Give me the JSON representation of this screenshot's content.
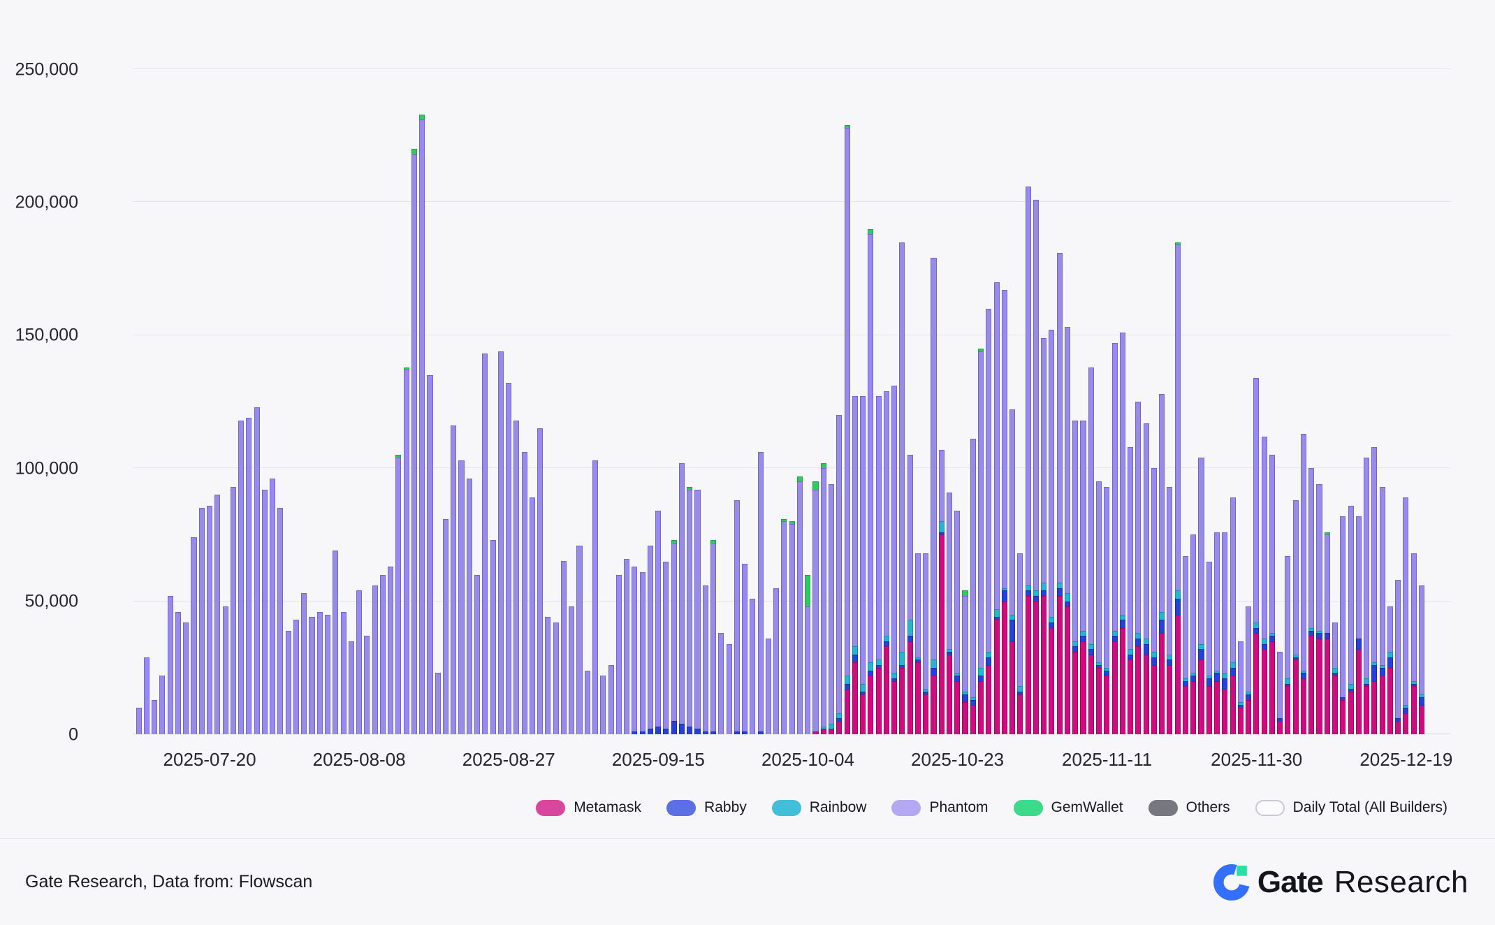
{
  "chart_data": {
    "type": "bar",
    "stacked": true,
    "title": "",
    "xlabel": "",
    "ylabel": "",
    "grid": "horizontal",
    "legend_position": "bottom-right",
    "values_in": "thousands",
    "ylim": [
      0,
      250000
    ],
    "y_ticks": [
      "0",
      "50,000",
      "100,000",
      "150,000",
      "200,000",
      "250,000"
    ],
    "x": [
      "2025-07-11",
      "2025-07-12",
      "2025-07-13",
      "2025-07-14",
      "2025-07-15",
      "2025-07-16",
      "2025-07-17",
      "2025-07-18",
      "2025-07-19",
      "2025-07-20",
      "2025-07-21",
      "2025-07-22",
      "2025-07-23",
      "2025-07-24",
      "2025-07-25",
      "2025-07-26",
      "2025-07-27",
      "2025-07-28",
      "2025-07-29",
      "2025-07-30",
      "2025-07-31",
      "2025-08-01",
      "2025-08-02",
      "2025-08-03",
      "2025-08-04",
      "2025-08-05",
      "2025-08-06",
      "2025-08-07",
      "2025-08-08",
      "2025-08-09",
      "2025-08-10",
      "2025-08-11",
      "2025-08-12",
      "2025-08-13",
      "2025-08-14",
      "2025-08-15",
      "2025-08-16",
      "2025-08-17",
      "2025-08-18",
      "2025-08-19",
      "2025-08-20",
      "2025-08-21",
      "2025-08-22",
      "2025-08-23",
      "2025-08-24",
      "2025-08-25",
      "2025-08-26",
      "2025-08-27",
      "2025-08-28",
      "2025-08-29",
      "2025-08-30",
      "2025-08-31",
      "2025-09-01",
      "2025-09-02",
      "2025-09-03",
      "2025-09-04",
      "2025-09-05",
      "2025-09-06",
      "2025-09-07",
      "2025-09-08",
      "2025-09-09",
      "2025-09-10",
      "2025-09-11",
      "2025-09-12",
      "2025-09-13",
      "2025-09-14",
      "2025-09-15",
      "2025-09-16",
      "2025-09-17",
      "2025-09-18",
      "2025-09-19",
      "2025-09-20",
      "2025-09-21",
      "2025-09-22",
      "2025-09-23",
      "2025-09-24",
      "2025-09-25",
      "2025-09-26",
      "2025-09-27",
      "2025-09-28",
      "2025-09-29",
      "2025-09-30",
      "2025-10-01",
      "2025-10-02",
      "2025-10-03",
      "2025-10-04",
      "2025-10-05",
      "2025-10-06",
      "2025-10-07",
      "2025-10-08",
      "2025-10-09",
      "2025-10-10",
      "2025-10-11",
      "2025-10-12",
      "2025-10-13",
      "2025-10-14",
      "2025-10-15",
      "2025-10-16",
      "2025-10-17",
      "2025-10-18",
      "2025-10-19",
      "2025-10-20",
      "2025-10-21",
      "2025-10-22",
      "2025-10-23",
      "2025-10-24",
      "2025-10-25",
      "2025-10-26",
      "2025-10-27",
      "2025-10-28",
      "2025-10-29",
      "2025-10-30",
      "2025-10-31",
      "2025-11-01",
      "2025-11-02",
      "2025-11-03",
      "2025-11-04",
      "2025-11-05",
      "2025-11-06",
      "2025-11-07",
      "2025-11-08",
      "2025-11-09",
      "2025-11-10",
      "2025-11-11",
      "2025-11-12",
      "2025-11-13",
      "2025-11-14",
      "2025-11-15",
      "2025-11-16",
      "2025-11-17",
      "2025-11-18",
      "2025-11-19",
      "2025-11-20",
      "2025-11-21",
      "2025-11-22",
      "2025-11-23",
      "2025-11-24",
      "2025-11-25",
      "2025-11-26",
      "2025-11-27",
      "2025-11-28",
      "2025-11-29",
      "2025-11-30",
      "2025-12-01",
      "2025-12-02",
      "2025-12-03",
      "2025-12-04",
      "2025-12-05",
      "2025-12-06",
      "2025-12-07",
      "2025-12-08",
      "2025-12-09",
      "2025-12-10",
      "2025-12-11",
      "2025-12-12",
      "2025-12-13",
      "2025-12-14",
      "2025-12-15",
      "2025-12-16",
      "2025-12-17",
      "2025-12-18",
      "2025-12-19",
      "2025-12-20",
      "2025-12-21"
    ],
    "x_tick_labels": [
      {
        "i": 9,
        "label": "2025-07-20"
      },
      {
        "i": 28,
        "label": "2025-08-08"
      },
      {
        "i": 47,
        "label": "2025-08-27"
      },
      {
        "i": 66,
        "label": "2025-09-15"
      },
      {
        "i": 85,
        "label": "2025-10-04"
      },
      {
        "i": 104,
        "label": "2025-10-23"
      },
      {
        "i": 123,
        "label": "2025-11-11"
      },
      {
        "i": 142,
        "label": "2025-11-30"
      },
      {
        "i": 161,
        "label": "2025-12-19"
      }
    ],
    "daily_totals": [
      10,
      29,
      13,
      22,
      52,
      46,
      42,
      74,
      85,
      86,
      90,
      48,
      93,
      118,
      119,
      123,
      92,
      96,
      85,
      39,
      43,
      53,
      44,
      46,
      45,
      69,
      46,
      35,
      54,
      37,
      56,
      60,
      63,
      105,
      138,
      220,
      233,
      135,
      23,
      81,
      116,
      103,
      96,
      60,
      143,
      73,
      144,
      132,
      118,
      106,
      89,
      115,
      44,
      42,
      65,
      48,
      71,
      24,
      103,
      22,
      26,
      60,
      66,
      63,
      61,
      71,
      84,
      65,
      73,
      102,
      93,
      92,
      56,
      73,
      38,
      34,
      88,
      64,
      51,
      106,
      36,
      55,
      81,
      80,
      97,
      60,
      95,
      102,
      94,
      120,
      229,
      127,
      127,
      190,
      127,
      129,
      131,
      185,
      105,
      68,
      68,
      179,
      107,
      91,
      84,
      54,
      111,
      145,
      160,
      170,
      167,
      122,
      68,
      206,
      201,
      149,
      152,
      181,
      153,
      118,
      118,
      138,
      95,
      93,
      147,
      151,
      108,
      125,
      117,
      100,
      128,
      93,
      185,
      67,
      75,
      104,
      65,
      76,
      76,
      89,
      35,
      48,
      134,
      112,
      105,
      31,
      67,
      88,
      113,
      100,
      94,
      76,
      42,
      82,
      86,
      82,
      104,
      108,
      93,
      48,
      58,
      89,
      68,
      56
    ],
    "series": [
      {
        "name": "Metamask",
        "color": "#d00b80",
        "border": "#9c0a60",
        "legend_color": "#d9469e",
        "values": [
          0,
          0,
          0,
          0,
          0,
          0,
          0,
          0,
          0,
          0,
          0,
          0,
          0,
          0,
          0,
          0,
          0,
          0,
          0,
          0,
          0,
          0,
          0,
          0,
          0,
          0,
          0,
          0,
          0,
          0,
          0,
          0,
          0,
          0,
          0,
          0,
          0,
          0,
          0,
          0,
          0,
          0,
          0,
          0,
          0,
          0,
          0,
          0,
          0,
          0,
          0,
          0,
          0,
          0,
          0,
          0,
          0,
          0,
          0,
          0,
          0,
          0,
          0,
          0,
          0,
          0,
          0,
          0,
          0,
          0,
          0,
          0,
          0,
          0,
          0,
          0,
          0,
          0,
          0,
          0,
          0,
          0,
          0,
          0,
          0,
          0,
          1,
          2,
          2,
          5,
          17,
          27,
          15,
          22,
          25,
          33,
          20,
          25,
          35,
          27,
          15,
          22,
          75,
          30,
          20,
          12,
          11,
          20,
          26,
          43,
          50,
          35,
          15,
          52,
          50,
          52,
          40,
          52,
          48,
          31,
          35,
          30,
          25,
          22,
          35,
          40,
          28,
          33,
          30,
          26,
          38,
          26,
          45,
          18,
          20,
          28,
          18,
          20,
          17,
          22,
          10,
          13,
          38,
          32,
          35,
          5,
          18,
          28,
          21,
          37,
          36,
          36,
          22,
          13,
          16,
          32,
          18,
          20,
          22,
          25,
          5,
          8,
          18,
          11
        ]
      },
      {
        "name": "Rabby",
        "color": "#2440dd",
        "border": "#1b2fa8",
        "legend_color": "#5c6fe4",
        "values": [
          0,
          0,
          0,
          0,
          0,
          0,
          0,
          0,
          0,
          0,
          0,
          0,
          0,
          0,
          0,
          0,
          0,
          0,
          0,
          0,
          0,
          0,
          0,
          0,
          0,
          0,
          0,
          0,
          0,
          0,
          0,
          0,
          0,
          0,
          0,
          0,
          0,
          0,
          0,
          0,
          0,
          0,
          0,
          0,
          0,
          0,
          0,
          0,
          0,
          0,
          0,
          0,
          0,
          0,
          0,
          0,
          0,
          0,
          0,
          0,
          0,
          0,
          0,
          1,
          1,
          2,
          3,
          2,
          5,
          4,
          3,
          2,
          1,
          1,
          0,
          0,
          1,
          1,
          0,
          1,
          0,
          0,
          0,
          0,
          0,
          0,
          0,
          0,
          0,
          1,
          2,
          3,
          1,
          2,
          1,
          2,
          1,
          1,
          2,
          1,
          1,
          3,
          1,
          1,
          2,
          3,
          2,
          2,
          3,
          1,
          4,
          8,
          1,
          2,
          2,
          2,
          2,
          3,
          2,
          2,
          2,
          2,
          1,
          2,
          2,
          3,
          2,
          3,
          4,
          3,
          5,
          2,
          6,
          2,
          2,
          4,
          3,
          3,
          4,
          3,
          1,
          2,
          2,
          2,
          2,
          1,
          1,
          1,
          2,
          2,
          2,
          2,
          1,
          1,
          1,
          4,
          1,
          6,
          3,
          4,
          1,
          2,
          1,
          3
        ]
      },
      {
        "name": "Rainbow",
        "color": "#25b4d3",
        "border": "#1b8ea7",
        "legend_color": "#41bfd8",
        "values": [
          0,
          0,
          0,
          0,
          0,
          0,
          0,
          0,
          0,
          0,
          0,
          0,
          0,
          0,
          0,
          0,
          0,
          0,
          0,
          0,
          0,
          0,
          0,
          0,
          0,
          0,
          0,
          0,
          0,
          0,
          0,
          0,
          0,
          0,
          0,
          0,
          0,
          0,
          0,
          0,
          0,
          0,
          0,
          0,
          0,
          0,
          0,
          0,
          0,
          0,
          0,
          0,
          0,
          0,
          0,
          0,
          0,
          0,
          0,
          0,
          0,
          0,
          0,
          0,
          0,
          0,
          0,
          0,
          0,
          0,
          0,
          0,
          0,
          0,
          0,
          0,
          0,
          0,
          0,
          0,
          0,
          0,
          0,
          0,
          0,
          0,
          0,
          1,
          2,
          2,
          3,
          3,
          3,
          3,
          2,
          2,
          2,
          5,
          6,
          1,
          1,
          3,
          4,
          1,
          1,
          1,
          1,
          3,
          2,
          3,
          1,
          2,
          2,
          2,
          2,
          3,
          2,
          2,
          3,
          2,
          2,
          2,
          1,
          1,
          2,
          2,
          2,
          2,
          2,
          2,
          3,
          2,
          3,
          1,
          1,
          2,
          1,
          1,
          2,
          2,
          1,
          1,
          2,
          2,
          1,
          0,
          2,
          1,
          1,
          1,
          1,
          0,
          2,
          0,
          2,
          0,
          2,
          1,
          1,
          2,
          0,
          1,
          1,
          1
        ]
      },
      {
        "name": "Phantom",
        "color": "#978bea",
        "border": "#7465d2",
        "legend_color": "#b4a8f2",
        "values_mode": "remainder_of_daily_total"
      },
      {
        "name": "GemWallet",
        "color": "#2dcb61",
        "border": "#23a04c",
        "legend_color": "#3eda8c",
        "values": [
          0,
          0,
          0,
          0,
          0,
          0,
          0,
          0,
          0,
          0,
          0,
          0,
          0,
          0,
          0,
          0,
          0,
          0,
          0,
          0,
          0,
          0,
          0,
          0,
          0,
          0,
          0,
          0,
          0,
          0,
          0,
          0,
          0,
          1,
          1,
          2,
          2,
          0,
          0,
          0,
          0,
          0,
          0,
          0,
          0,
          0,
          0,
          0,
          0,
          0,
          0,
          0,
          0,
          0,
          0,
          0,
          0,
          0,
          0,
          0,
          0,
          0,
          0,
          0,
          0,
          0,
          0,
          0,
          1,
          0,
          1,
          0,
          0,
          1,
          0,
          0,
          0,
          0,
          0,
          0,
          0,
          0,
          1,
          1,
          2,
          12,
          3,
          2,
          0,
          0,
          1,
          0,
          0,
          2,
          0,
          0,
          0,
          0,
          0,
          0,
          0,
          0,
          0,
          0,
          0,
          2,
          0,
          1,
          0,
          0,
          0,
          0,
          0,
          0,
          0,
          0,
          0,
          0,
          0,
          0,
          0,
          0,
          0,
          0,
          0,
          0,
          0,
          0,
          0,
          0,
          0,
          0,
          1,
          0,
          0,
          0,
          0,
          0,
          0,
          0,
          0,
          0,
          0,
          0,
          0,
          0,
          0,
          0,
          0,
          0,
          0,
          1,
          0,
          0,
          0,
          0,
          0,
          0,
          0,
          0,
          0,
          0,
          0,
          0
        ]
      },
      {
        "name": "Others",
        "color": "#6f6f78",
        "border": "#57575e",
        "legend_color": "#77777f",
        "values": [
          0,
          0,
          0,
          0,
          0,
          0,
          0,
          0,
          0,
          0,
          0,
          0,
          0,
          0,
          0,
          0,
          0,
          0,
          0,
          0,
          0,
          0,
          0,
          0,
          0,
          0,
          0,
          0,
          0,
          0,
          0,
          0,
          0,
          0,
          0,
          0,
          0,
          0,
          0,
          0,
          0,
          0,
          0,
          0,
          0,
          0,
          0,
          0,
          0,
          0,
          0,
          0,
          0,
          0,
          0,
          0,
          0,
          0,
          0,
          0,
          0,
          0,
          0,
          0,
          0,
          0,
          0,
          0,
          0,
          0,
          0,
          0,
          0,
          0,
          0,
          0,
          0,
          0,
          0,
          0,
          0,
          0,
          0,
          0,
          0,
          0,
          0,
          0,
          0,
          0,
          0,
          0,
          0,
          0,
          0,
          0,
          0,
          0,
          0,
          0,
          0,
          0,
          0,
          0,
          0,
          0,
          0,
          0,
          0,
          0,
          0,
          0,
          0,
          0,
          0,
          0,
          0,
          0,
          0,
          0,
          0,
          0,
          0,
          0,
          0,
          0,
          0,
          0,
          0,
          0,
          0,
          0,
          0,
          0,
          0,
          0,
          0,
          0,
          0,
          0,
          0,
          0,
          0,
          0,
          0,
          0,
          0,
          0,
          0,
          0,
          0,
          0,
          0,
          0,
          0,
          0,
          0,
          0,
          0,
          0,
          0,
          0,
          0,
          0
        ]
      }
    ],
    "legend_extra": {
      "label": "Daily Total (All Builders)",
      "color": "#fbfbfd",
      "border": "#c9c9d3"
    }
  },
  "footer": {
    "source_text": "Gate Research, Data from: Flowscan",
    "logo_bold": "Gate",
    "logo_light": "Research"
  },
  "colors": {
    "background": "#f7f7fa",
    "gridline": "#e4e4ea",
    "axis_text": "#26262c",
    "logo_blue": "#3370ff",
    "logo_green": "#25e2a4",
    "logo_text": "#15151d"
  }
}
